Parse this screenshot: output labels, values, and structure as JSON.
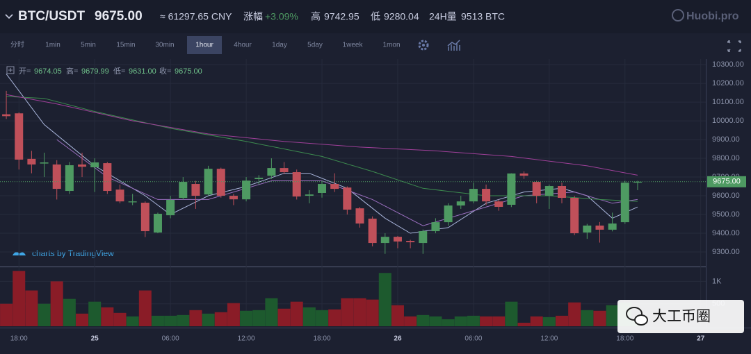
{
  "header": {
    "pair": "BTC/USDT",
    "price": "9675.00",
    "cny": "≈ 61297.65 CNY",
    "change_label": "涨幅",
    "change": "+3.09%",
    "high_label": "高",
    "high": "9742.95",
    "low_label": "低",
    "low": "9280.04",
    "volume_label": "24H量",
    "volume": "9513 BTC",
    "logo": "Huobi.pro"
  },
  "toolbar": {
    "items": [
      "分时",
      "1min",
      "5min",
      "15min",
      "30min",
      "1hour",
      "4hour",
      "1day",
      "5day",
      "1week",
      "1mon"
    ],
    "active": 5
  },
  "credit": "charts by TradingView",
  "watermark": "大工币圈",
  "chart_data": {
    "type": "candlestick",
    "ohlc_legend": [
      {
        "label": "开=",
        "value": "9674.05"
      },
      {
        "label": "高=",
        "value": "9679.99"
      },
      {
        "label": "低=",
        "value": "9631.00"
      },
      {
        "label": "收=",
        "value": "9675.00"
      }
    ],
    "x": [
      17,
      18,
      19,
      20,
      21,
      22,
      23,
      24,
      25,
      26,
      27,
      28,
      29,
      30,
      31,
      32,
      33,
      34,
      35,
      36,
      37,
      38,
      39,
      40,
      41,
      42,
      43,
      44,
      45,
      46,
      47,
      48,
      49,
      50,
      51,
      52,
      53,
      54,
      55,
      56,
      57,
      58,
      59,
      60,
      61,
      62,
      63,
      64,
      65,
      66,
      67
    ],
    "open": [
      10035,
      10040,
      9797,
      9772,
      9767,
      9626,
      9767,
      9752,
      9774,
      9633,
      9565,
      9563,
      9404,
      9496,
      9589,
      9663,
      9607,
      9744,
      9600,
      9581,
      9689,
      9707,
      9748,
      9726,
      9600,
      9615,
      9663,
      9644,
      9533,
      9478,
      9348,
      9381,
      9359,
      9348,
      9411,
      9459,
      9548,
      9570,
      9637,
      9570,
      9552,
      9719,
      9674,
      9600,
      9652,
      9589,
      9404,
      9441,
      9419,
      9459,
      9670
    ],
    "high": [
      10160,
      10045,
      9840,
      9830,
      9790,
      9780,
      9830,
      9800,
      9780,
      9660,
      9610,
      9570,
      9510,
      9600,
      9700,
      9680,
      9760,
      9750,
      9610,
      9700,
      9710,
      9800,
      9780,
      9740,
      9630,
      9680,
      9720,
      9650,
      9540,
      9490,
      9400,
      9385,
      9365,
      9420,
      9480,
      9560,
      9600,
      9670,
      9660,
      9580,
      9720,
      9730,
      9680,
      9660,
      9670,
      9600,
      9450,
      9460,
      9510,
      9680,
      9680
    ],
    "low": [
      10010,
      9740,
      9720,
      9700,
      9580,
      9610,
      9700,
      9620,
      9610,
      9560,
      9550,
      9380,
      9400,
      9480,
      9580,
      9530,
      9600,
      9590,
      9550,
      9570,
      9660,
      9690,
      9715,
      9580,
      9560,
      9590,
      9620,
      9500,
      9430,
      9330,
      9290,
      9320,
      9320,
      9290,
      9400,
      9440,
      9530,
      9560,
      9550,
      9520,
      9540,
      9690,
      9560,
      9530,
      9560,
      9390,
      9370,
      9350,
      9410,
      9450,
      9630
    ],
    "close": [
      10025,
      9793,
      9767,
      9778,
      9637,
      9763,
      9755,
      9778,
      9626,
      9570,
      9570,
      9411,
      9504,
      9578,
      9674,
      9600,
      9744,
      9600,
      9581,
      9681,
      9696,
      9748,
      9726,
      9596,
      9607,
      9663,
      9637,
      9526,
      9452,
      9348,
      9381,
      9356,
      9352,
      9411,
      9459,
      9548,
      9570,
      9637,
      9570,
      9541,
      9719,
      9707,
      9600,
      9652,
      9589,
      9400,
      9441,
      9419,
      9452,
      9670,
      9675
    ],
    "volume": [
      500,
      1234,
      797,
      500,
      1000,
      609,
      281,
      547,
      422,
      297,
      219,
      797,
      234,
      234,
      250,
      359,
      281,
      313,
      516,
      344,
      359,
      625,
      391,
      547,
      422,
      359,
      375,
      625,
      625,
      594,
      1188,
      469,
      219,
      250,
      219,
      156,
      219,
      234,
      219,
      219,
      547,
      78,
      219,
      203,
      234,
      531,
      359,
      344,
      469,
      531,
      156
    ],
    "up_color": "#4e9a62",
    "down_color": "#c0505a",
    "volume_up_color": "#1d5a2e",
    "volume_down_color": "#8a1c27",
    "ma_lines": [
      {
        "color": "#aab6dc",
        "x": [
          17,
          20,
          24,
          28,
          30,
          33,
          36,
          39,
          41,
          44,
          47,
          49,
          52,
          55,
          58,
          61,
          63,
          65,
          67
        ],
        "values": [
          10250,
          9980,
          9760,
          9600,
          9500,
          9600,
          9650,
          9720,
          9720,
          9640,
          9480,
          9400,
          9430,
          9560,
          9620,
          9640,
          9600,
          9480,
          9540
        ]
      },
      {
        "color": "#9b6fc0",
        "x": [
          21,
          25,
          29,
          33,
          38,
          42,
          46,
          50,
          54,
          58,
          62,
          65,
          67
        ],
        "values": [
          9900,
          9700,
          9580,
          9580,
          9680,
          9680,
          9580,
          9440,
          9520,
          9600,
          9620,
          9560,
          9580
        ]
      },
      {
        "color": "#3d8c4f",
        "x": [
          17,
          20,
          24,
          30,
          36,
          42,
          46,
          50,
          55,
          60,
          64,
          67
        ],
        "values": [
          10130,
          10120,
          10050,
          9960,
          9890,
          9810,
          9730,
          9640,
          9600,
          9600,
          9580,
          9570
        ]
      },
      {
        "color": "#a0409a",
        "x": [
          17,
          21,
          27,
          33,
          39,
          45,
          51,
          57,
          63,
          67
        ],
        "values": [
          10140,
          10090,
          10000,
          9930,
          9890,
          9860,
          9840,
          9810,
          9760,
          9710
        ]
      }
    ],
    "last_price": {
      "value": 9675,
      "label": "9675.00"
    },
    "xlim": [
      16.5,
      72.4
    ],
    "xticks": [
      {
        "value": 18,
        "label": "18:00"
      },
      {
        "value": 24,
        "label": "25"
      },
      {
        "value": 30,
        "label": "06:00"
      },
      {
        "value": 36,
        "label": "12:00"
      },
      {
        "value": 42,
        "label": "18:00"
      },
      {
        "value": 48,
        "label": "26"
      },
      {
        "value": 54,
        "label": "06:00"
      },
      {
        "value": 60,
        "label": "12:00"
      },
      {
        "value": 66,
        "label": "18:00"
      },
      {
        "value": 72,
        "label": "27"
      }
    ],
    "ylim": [
      9226,
      10330
    ],
    "yticks": [
      {
        "value": 9300,
        "label": "9300.00"
      },
      {
        "value": 9400,
        "label": "9400.00"
      },
      {
        "value": 9500,
        "label": "9500.00"
      },
      {
        "value": 9600,
        "label": "9600.00"
      },
      {
        "value": 9700,
        "label": "9700.00"
      },
      {
        "value": 9800,
        "label": "9800.00"
      },
      {
        "value": 9900,
        "label": "9900.00"
      },
      {
        "value": 10000,
        "label": "10000.00"
      },
      {
        "value": 10100,
        "label": "10100.00"
      },
      {
        "value": 10200,
        "label": "10200.00"
      },
      {
        "value": 10300,
        "label": "10300.00"
      }
    ],
    "volume_ylim": [
      0,
      1300
    ],
    "volume_yticks": [
      500,
      {
        "value": 1000,
        "label": "1K"
      }
    ],
    "grid": true
  }
}
